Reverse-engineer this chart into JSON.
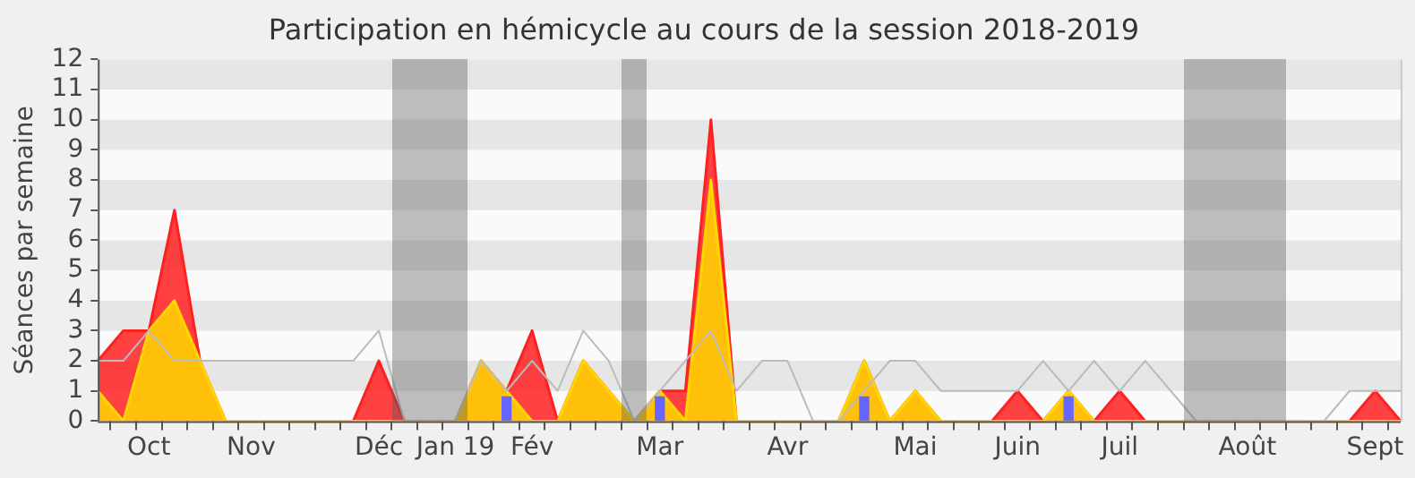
{
  "chart_data": {
    "type": "area",
    "title": "Participation en hémicycle au cours de la session 2018-2019",
    "ylabel": "Séances par semaine",
    "categories": [
      null,
      null,
      "Oct",
      null,
      null,
      null,
      "Nov",
      null,
      null,
      null,
      null,
      "Déc",
      null,
      null,
      "Jan 19",
      null,
      null,
      "Fév",
      null,
      null,
      null,
      null,
      "Mar",
      null,
      null,
      null,
      null,
      "Avr",
      null,
      null,
      null,
      null,
      "Mai",
      null,
      null,
      null,
      "Juin",
      null,
      null,
      null,
      "Juil",
      null,
      null,
      null,
      null,
      "Août",
      null,
      null,
      null,
      null,
      "Sept",
      null
    ],
    "series": [
      {
        "type": "line",
        "color": "#bbbbbb",
        "values": [
          2,
          2,
          3,
          2,
          2,
          2,
          2,
          2,
          2,
          2,
          2,
          3,
          0,
          0,
          0,
          2,
          1,
          2,
          1,
          3,
          2,
          0,
          1,
          2,
          3,
          1,
          2,
          2,
          0,
          0,
          1,
          2,
          2,
          1,
          1,
          1,
          1,
          2,
          1,
          2,
          1,
          2,
          1,
          0,
          0,
          0,
          0,
          0,
          0,
          1,
          1,
          1
        ]
      },
      {
        "color": "#ff2020",
        "values": [
          2,
          3,
          3,
          7,
          2,
          0,
          0,
          0,
          0,
          0,
          0,
          2,
          0,
          0,
          0,
          2,
          1,
          3,
          0,
          2,
          1,
          0,
          1,
          1,
          10,
          0,
          0,
          0,
          0,
          0,
          2,
          0,
          1,
          0,
          0,
          0,
          1,
          0,
          1,
          0,
          1,
          0,
          0,
          0,
          0,
          0,
          0,
          0,
          0,
          0,
          1,
          0
        ]
      },
      {
        "color": "#ffd700",
        "values": [
          1,
          0,
          3,
          4,
          2,
          0,
          0,
          0,
          0,
          0,
          0,
          0,
          0,
          0,
          0,
          2,
          1,
          0,
          0,
          2,
          1,
          0,
          1,
          0,
          8,
          0,
          0,
          0,
          0,
          0,
          2,
          0,
          1,
          0,
          0,
          0,
          0,
          0,
          1,
          0,
          0,
          0,
          0,
          0,
          0,
          0,
          0,
          0,
          0,
          0,
          0,
          0
        ]
      },
      {
        "type": "bar",
        "color": "#6666ff",
        "values": [
          null,
          null,
          null,
          null,
          null,
          null,
          null,
          null,
          null,
          null,
          null,
          null,
          null,
          null,
          null,
          null,
          0.8,
          null,
          null,
          null,
          null,
          null,
          0.8,
          null,
          null,
          null,
          null,
          null,
          null,
          null,
          0.8,
          null,
          null,
          null,
          null,
          null,
          null,
          null,
          0.8,
          null,
          null,
          null,
          null,
          null,
          null,
          null,
          null,
          null,
          null,
          null,
          null,
          null
        ]
      }
    ],
    "ylim": [
      0,
      12
    ],
    "yticks": [
      0,
      1,
      2,
      3,
      4,
      5,
      6,
      7,
      8,
      9,
      10,
      11,
      12
    ],
    "bands": [
      {
        "axis": "y",
        "from": 1,
        "to": 2,
        "color": "#e6e6e6"
      },
      {
        "axis": "y",
        "from": 3,
        "to": 4,
        "color": "#e6e6e6"
      },
      {
        "axis": "y",
        "from": 5,
        "to": 6,
        "color": "#e6e6e6"
      },
      {
        "axis": "y",
        "from": 7,
        "to": 8,
        "color": "#e6e6e6"
      },
      {
        "axis": "y",
        "from": 9,
        "to": 10,
        "color": "#e6e6e6"
      },
      {
        "axis": "y",
        "from": 11,
        "to": 12,
        "color": "#e6e6e6"
      }
    ],
    "legend": false,
    "marker": "none",
    "line_style": "solid"
  }
}
